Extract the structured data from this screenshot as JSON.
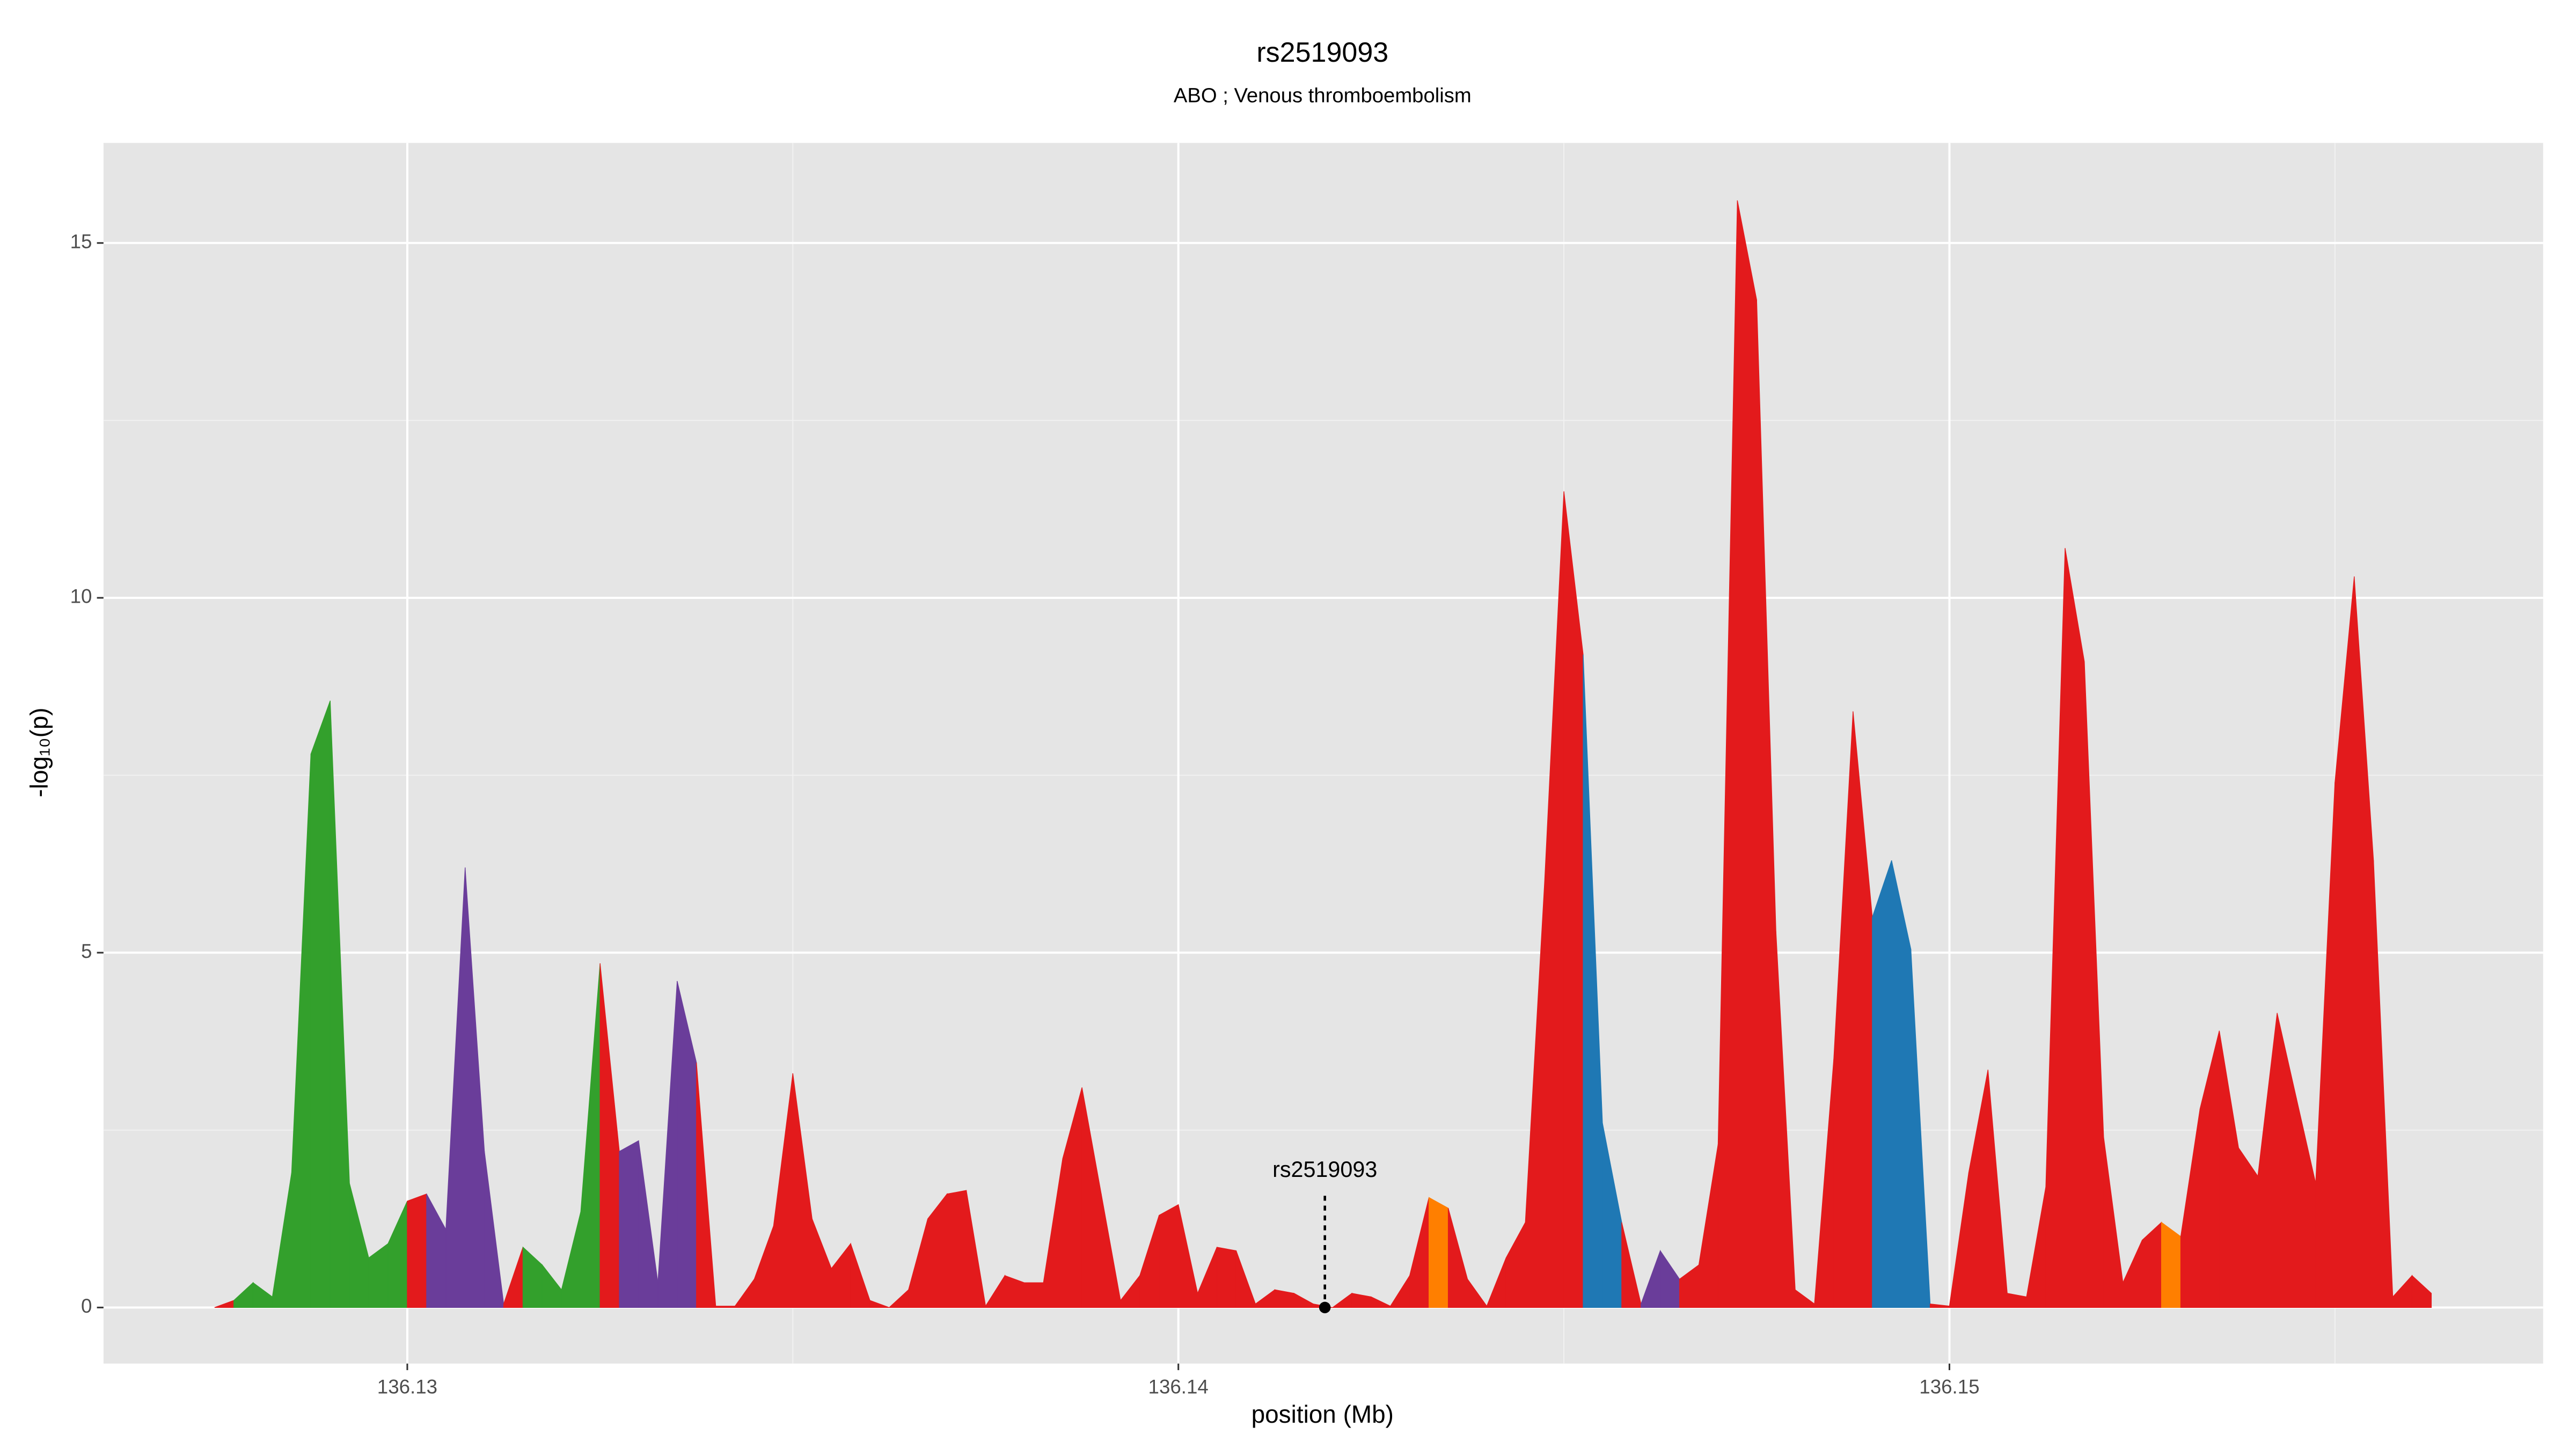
{
  "chart_data": {
    "type": "area",
    "title": "rs2519093",
    "subtitle": "ABO ; Venous thromboembolism",
    "xlabel": "position (Mb)",
    "ylabel": "-log₁₀(p)",
    "xlim": [
      136.12606,
      136.1577
    ],
    "ylim": [
      -0.79,
      16.41
    ],
    "xticks": [
      136.13,
      136.14,
      136.15
    ],
    "yticks": [
      0,
      5,
      10,
      15
    ],
    "minor_xticks": [
      136.135,
      136.145,
      136.155
    ],
    "minor_yticks": [
      2.5,
      7.5,
      12.5
    ],
    "grid": true,
    "x": [
      136.1275,
      136.12775,
      136.128,
      136.12825,
      136.1285,
      136.12875,
      136.129,
      136.12925,
      136.1295,
      136.12975,
      136.13,
      136.13025,
      136.1305,
      136.13075,
      136.131,
      136.13125,
      136.1315,
      136.13175,
      136.132,
      136.13225,
      136.1325,
      136.13275,
      136.133,
      136.13325,
      136.1335,
      136.13375,
      136.134,
      136.13425,
      136.1345,
      136.13475,
      136.135,
      136.13525,
      136.1355,
      136.13575,
      136.136,
      136.13625,
      136.1365,
      136.13675,
      136.137,
      136.13725,
      136.1375,
      136.13775,
      136.138,
      136.13825,
      136.1385,
      136.13875,
      136.139,
      136.13925,
      136.1395,
      136.13975,
      136.14,
      136.14025,
      136.1405,
      136.14075,
      136.141,
      136.14125,
      136.1415,
      136.14175,
      136.142,
      136.14225,
      136.1425,
      136.14275,
      136.143,
      136.14325,
      136.1435,
      136.14375,
      136.144,
      136.14425,
      136.1445,
      136.14475,
      136.145,
      136.14525,
      136.1455,
      136.14575,
      136.146,
      136.14625,
      136.1465,
      136.14675,
      136.147,
      136.14725,
      136.1475,
      136.14775,
      136.148,
      136.14825,
      136.1485,
      136.14875,
      136.149,
      136.14925,
      136.1495,
      136.14975,
      136.15,
      136.15025,
      136.1505,
      136.15075,
      136.151,
      136.15125,
      136.1515,
      136.15175,
      136.152,
      136.15225,
      136.1525,
      136.15275,
      136.153,
      136.15325,
      136.1535,
      136.15375,
      136.154,
      136.15425,
      136.1545,
      136.15475,
      136.155,
      136.15525,
      136.1555,
      136.15575,
      136.156,
      136.15625
    ],
    "y": [
      0,
      0.1,
      0.35,
      0.15,
      1.9,
      7.8,
      8.55,
      1.75,
      0.7,
      0.9,
      1.5,
      1.6,
      1.1,
      6.2,
      2.2,
      0.05,
      0.85,
      0.6,
      0.25,
      1.35,
      4.85,
      2.2,
      2.35,
      0.35,
      4.6,
      3.45,
      0.02,
      0.02,
      0.4,
      1.15,
      3.3,
      1.25,
      0.55,
      0.9,
      0.1,
      0,
      0.25,
      1.25,
      1.6,
      1.65,
      0.02,
      0.45,
      0.35,
      0.35,
      2.1,
      3.1,
      1.6,
      0.1,
      0.45,
      1.3,
      1.45,
      0.2,
      0.85,
      0.8,
      0.05,
      0.25,
      0.2,
      0.05,
      0,
      0.2,
      0.15,
      0.02,
      0.45,
      1.55,
      1.4,
      0.4,
      0.02,
      0.7,
      1.2,
      6,
      11.5,
      9.2,
      2.6,
      1.2,
      0.05,
      0.8,
      0.4,
      0.6,
      2.3,
      15.6,
      14.2,
      5.3,
      0.25,
      0.05,
      3.5,
      8.4,
      5.5,
      6.3,
      5.05,
      0.05,
      0.02,
      1.9,
      3.35,
      0.2,
      0.15,
      1.7,
      10.7,
      9.1,
      2.4,
      0.35,
      0.95,
      1.2,
      1.0,
      2.8,
      3.9,
      2.25,
      1.85,
      4.15,
      2.95,
      1.75,
      7.4,
      10.3,
      6.3,
      0.15,
      0.45,
      0.2
    ],
    "point_colors": [
      "#e31a1c",
      "#33a02c",
      "#33a02c",
      "#33a02c",
      "#33a02c",
      "#33a02c",
      "#33a02c",
      "#33a02c",
      "#33a02c",
      "#33a02c",
      "#e31a1c",
      "#6a3d9a",
      "#6a3d9a",
      "#6a3d9a",
      "#6a3d9a",
      "#e31a1c",
      "#33a02c",
      "#33a02c",
      "#33a02c",
      "#33a02c",
      "#e31a1c",
      "#6a3d9a",
      "#6a3d9a",
      "#6a3d9a",
      "#6a3d9a",
      "#e31a1c",
      "#e31a1c",
      "#e31a1c",
      "#e31a1c",
      "#e31a1c",
      "#e31a1c",
      "#e31a1c",
      "#e31a1c",
      "#e31a1c",
      "#e31a1c",
      "#e31a1c",
      "#e31a1c",
      "#e31a1c",
      "#e31a1c",
      "#e31a1c",
      "#e31a1c",
      "#e31a1c",
      "#e31a1c",
      "#e31a1c",
      "#e31a1c",
      "#e31a1c",
      "#e31a1c",
      "#e31a1c",
      "#e31a1c",
      "#e31a1c",
      "#e31a1c",
      "#e31a1c",
      "#e31a1c",
      "#e31a1c",
      "#e31a1c",
      "#e31a1c",
      "#e31a1c",
      "#e31a1c",
      "#e31a1c",
      "#e31a1c",
      "#e31a1c",
      "#e31a1c",
      "#e31a1c",
      "#ff7f00",
      "#e31a1c",
      "#e31a1c",
      "#e31a1c",
      "#e31a1c",
      "#e31a1c",
      "#e31a1c",
      "#e31a1c",
      "#1f78b4",
      "#1f78b4",
      "#e31a1c",
      "#6a3d9a",
      "#6a3d9a",
      "#e31a1c",
      "#e31a1c",
      "#e31a1c",
      "#e31a1c",
      "#e31a1c",
      "#e31a1c",
      "#e31a1c",
      "#e31a1c",
      "#e31a1c",
      "#e31a1c",
      "#1f78b4",
      "#1f78b4",
      "#1f78b4",
      "#e31a1c",
      "#e31a1c",
      "#e31a1c",
      "#e31a1c",
      "#e31a1c",
      "#e31a1c",
      "#e31a1c",
      "#e31a1c",
      "#e31a1c",
      "#e31a1c",
      "#e31a1c",
      "#e31a1c",
      "#ff7f00",
      "#e31a1c",
      "#e31a1c",
      "#e31a1c",
      "#e31a1c",
      "#e31a1c",
      "#e31a1c",
      "#e31a1c",
      "#e31a1c",
      "#e31a1c",
      "#e31a1c",
      "#e31a1c",
      "#e31a1c",
      "#e31a1c",
      "#e31a1c"
    ],
    "annotations": [
      {
        "text": "rs2519093",
        "x": 136.1419,
        "y": 0
      }
    ]
  }
}
